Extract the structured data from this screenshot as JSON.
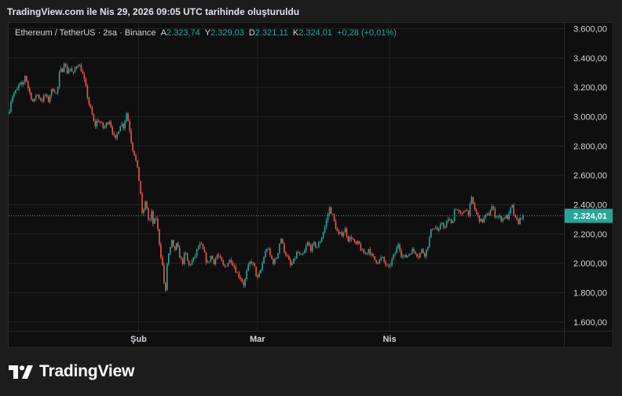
{
  "header": {
    "attribution": "TradingView.com ile Nis 29, 2026 09:05 UTC tarihinde oluşturuldu"
  },
  "legend": {
    "symbol": "Ethereum / TetherUS · 2sa · Binance",
    "open_label": "A",
    "open": "2.323,74",
    "high_label": "Y",
    "high": "2.329,03",
    "low_label": "D",
    "low": "2.321,11",
    "close_label": "K",
    "close": "2.324,01",
    "change": "+0,28 (+0,01%)"
  },
  "brand": {
    "name": "TradingView",
    "logo_icon": "tradingview-logo-icon"
  },
  "colors": {
    "up": "#26a69a",
    "down": "#ef5350",
    "background": "#0f0f0f",
    "grid": "#232323",
    "price_line": "#26a69a",
    "last_price_badge": "#26a69a"
  },
  "chart_data": {
    "type": "candlestick",
    "symbol": "ETHUSDT",
    "interval": "2h",
    "yaxis": {
      "ticks": [
        1600,
        1800,
        2000,
        2200,
        2400,
        2600,
        2800,
        3000,
        3200,
        3400,
        3600
      ],
      "tick_labels": [
        "1.600,00",
        "1.800,00",
        "2.000,00",
        "2.200,00",
        "2.400,00",
        "2.600,00",
        "2.800,00",
        "3.000,00",
        "3.200,00",
        "3.400,00",
        "3.600,00"
      ],
      "ylim": [
        1540,
        3640
      ]
    },
    "xaxis": {
      "tick_labels": [
        "Şub",
        "Mar",
        "Nis"
      ],
      "tick_positions": [
        0.234,
        0.448,
        0.686
      ]
    },
    "last_price": 2324.01,
    "last_price_label": "2.324,01",
    "grid": true,
    "path": [
      [
        0.0,
        3020
      ],
      [
        0.005,
        3130
      ],
      [
        0.01,
        3160
      ],
      [
        0.015,
        3180
      ],
      [
        0.02,
        3230
      ],
      [
        0.025,
        3200
      ],
      [
        0.03,
        3290
      ],
      [
        0.036,
        3180
      ],
      [
        0.04,
        3140
      ],
      [
        0.045,
        3090
      ],
      [
        0.05,
        3160
      ],
      [
        0.055,
        3130
      ],
      [
        0.06,
        3110
      ],
      [
        0.066,
        3150
      ],
      [
        0.071,
        3100
      ],
      [
        0.076,
        3170
      ],
      [
        0.081,
        3190
      ],
      [
        0.087,
        3150
      ],
      [
        0.092,
        3310
      ],
      [
        0.097,
        3320
      ],
      [
        0.1,
        3380
      ],
      [
        0.105,
        3300
      ],
      [
        0.11,
        3340
      ],
      [
        0.116,
        3280
      ],
      [
        0.121,
        3350
      ],
      [
        0.126,
        3360
      ],
      [
        0.131,
        3320
      ],
      [
        0.136,
        3250
      ],
      [
        0.14,
        3180
      ],
      [
        0.145,
        3080
      ],
      [
        0.15,
        3020
      ],
      [
        0.155,
        2930
      ],
      [
        0.16,
        2980
      ],
      [
        0.165,
        2960
      ],
      [
        0.171,
        2920
      ],
      [
        0.176,
        2950
      ],
      [
        0.181,
        2980
      ],
      [
        0.187,
        2900
      ],
      [
        0.192,
        2830
      ],
      [
        0.197,
        2900
      ],
      [
        0.202,
        2960
      ],
      [
        0.207,
        2930
      ],
      [
        0.212,
        3030
      ],
      [
        0.217,
        2940
      ],
      [
        0.222,
        2800
      ],
      [
        0.227,
        2740
      ],
      [
        0.232,
        2640
      ],
      [
        0.237,
        2510
      ],
      [
        0.241,
        2300
      ],
      [
        0.245,
        2420
      ],
      [
        0.249,
        2380
      ],
      [
        0.253,
        2260
      ],
      [
        0.257,
        2350
      ],
      [
        0.261,
        2250
      ],
      [
        0.265,
        2330
      ],
      [
        0.27,
        2180
      ],
      [
        0.274,
        2060
      ],
      [
        0.278,
        1960
      ],
      [
        0.282,
        1760
      ],
      [
        0.286,
        2040
      ],
      [
        0.29,
        2080
      ],
      [
        0.294,
        2150
      ],
      [
        0.298,
        2080
      ],
      [
        0.303,
        2130
      ],
      [
        0.308,
        2050
      ],
      [
        0.313,
        2000
      ],
      [
        0.318,
        2080
      ],
      [
        0.324,
        1980
      ],
      [
        0.329,
        2010
      ],
      [
        0.334,
        2030
      ],
      [
        0.34,
        2100
      ],
      [
        0.346,
        2130
      ],
      [
        0.352,
        2070
      ],
      [
        0.358,
        1990
      ],
      [
        0.364,
        2050
      ],
      [
        0.37,
        2010
      ],
      [
        0.376,
        2060
      ],
      [
        0.382,
        2020
      ],
      [
        0.388,
        1970
      ],
      [
        0.394,
        2000
      ],
      [
        0.4,
        2030
      ],
      [
        0.406,
        1980
      ],
      [
        0.412,
        1930
      ],
      [
        0.418,
        1900
      ],
      [
        0.424,
        1850
      ],
      [
        0.43,
        1960
      ],
      [
        0.436,
        2020
      ],
      [
        0.442,
        1980
      ],
      [
        0.448,
        1890
      ],
      [
        0.454,
        1950
      ],
      [
        0.46,
        2050
      ],
      [
        0.466,
        2110
      ],
      [
        0.472,
        2040
      ],
      [
        0.478,
        2000
      ],
      [
        0.484,
        2060
      ],
      [
        0.49,
        2180
      ],
      [
        0.496,
        2090
      ],
      [
        0.502,
        2040
      ],
      [
        0.508,
        1980
      ],
      [
        0.514,
        2020
      ],
      [
        0.52,
        2080
      ],
      [
        0.526,
        2040
      ],
      [
        0.532,
        2070
      ],
      [
        0.538,
        2140
      ],
      [
        0.544,
        2100
      ],
      [
        0.55,
        2130
      ],
      [
        0.556,
        2110
      ],
      [
        0.562,
        2160
      ],
      [
        0.568,
        2230
      ],
      [
        0.573,
        2300
      ],
      [
        0.578,
        2380
      ],
      [
        0.583,
        2330
      ],
      [
        0.588,
        2260
      ],
      [
        0.594,
        2190
      ],
      [
        0.6,
        2200
      ],
      [
        0.606,
        2230
      ],
      [
        0.612,
        2160
      ],
      [
        0.618,
        2180
      ],
      [
        0.624,
        2120
      ],
      [
        0.63,
        2140
      ],
      [
        0.636,
        2080
      ],
      [
        0.642,
        2060
      ],
      [
        0.648,
        2100
      ],
      [
        0.654,
        2050
      ],
      [
        0.66,
        2020
      ],
      [
        0.666,
        2010
      ],
      [
        0.672,
        2040
      ],
      [
        0.678,
        2000
      ],
      [
        0.684,
        1960
      ],
      [
        0.69,
        2020
      ],
      [
        0.696,
        2070
      ],
      [
        0.702,
        2140
      ],
      [
        0.708,
        2050
      ],
      [
        0.714,
        2040
      ],
      [
        0.72,
        2060
      ],
      [
        0.726,
        2090
      ],
      [
        0.732,
        2080
      ],
      [
        0.738,
        2050
      ],
      [
        0.744,
        2090
      ],
      [
        0.75,
        2060
      ],
      [
        0.756,
        2140
      ],
      [
        0.762,
        2240
      ],
      [
        0.768,
        2250
      ],
      [
        0.774,
        2210
      ],
      [
        0.78,
        2280
      ],
      [
        0.786,
        2240
      ],
      [
        0.792,
        2310
      ],
      [
        0.798,
        2260
      ],
      [
        0.804,
        2390
      ],
      [
        0.81,
        2350
      ],
      [
        0.816,
        2320
      ],
      [
        0.822,
        2380
      ],
      [
        0.828,
        2340
      ],
      [
        0.834,
        2440
      ],
      [
        0.84,
        2360
      ],
      [
        0.846,
        2310
      ],
      [
        0.852,
        2280
      ],
      [
        0.858,
        2320
      ],
      [
        0.864,
        2330
      ],
      [
        0.87,
        2390
      ],
      [
        0.876,
        2330
      ],
      [
        0.882,
        2320
      ],
      [
        0.888,
        2300
      ],
      [
        0.894,
        2320
      ],
      [
        0.9,
        2310
      ],
      [
        0.906,
        2400
      ],
      [
        0.912,
        2300
      ],
      [
        0.918,
        2280
      ],
      [
        0.924,
        2320
      ],
      [
        0.928,
        2324
      ]
    ]
  }
}
